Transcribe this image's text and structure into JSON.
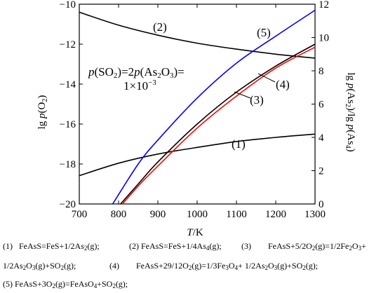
{
  "chart_data": {
    "type": "line",
    "xlabel": "T/K",
    "ylabel_left": "lg p(O2)",
    "ylabel_right": "lg p(As2)/lg p(As4)",
    "xlim": [
      700,
      1300
    ],
    "ylim_left": [
      -20,
      -10
    ],
    "ylim_right": [
      0,
      12
    ],
    "x_ticks": [
      "700",
      "800",
      "900",
      "1000",
      "1100",
      "1200",
      "1300"
    ],
    "y_ticks_left": [
      "-20",
      "-18",
      "-16",
      "-14",
      "-12",
      "-10"
    ],
    "y_ticks_right": [
      "0",
      "2",
      "4",
      "6",
      "8",
      "10",
      "12"
    ],
    "grid": false,
    "condition_text": [
      "p(SO2)=2p(As2O3)=",
      "1×10−3"
    ],
    "series": [
      {
        "name": "(1)",
        "axis": "right",
        "color": "#000000",
        "x": [
          700,
          800,
          900,
          1000,
          1100,
          1200,
          1300
        ],
        "y": [
          1.7,
          2.45,
          3.0,
          3.4,
          3.75,
          4.0,
          4.2
        ]
      },
      {
        "name": "(2)",
        "axis": "left",
        "color": "#000000",
        "x": [
          700,
          800,
          900,
          1000,
          1100,
          1200,
          1300
        ],
        "y": [
          -10.4,
          -11.05,
          -11.55,
          -11.95,
          -12.25,
          -12.5,
          -12.7
        ]
      },
      {
        "name": "(3)",
        "axis": "left",
        "color": "#000000",
        "x": [
          805,
          850,
          900,
          1000,
          1100,
          1200,
          1300
        ],
        "y": [
          -20.0,
          -19.0,
          -17.9,
          -16.0,
          -14.4,
          -13.1,
          -12.0
        ]
      },
      {
        "name": "(4)",
        "axis": "left",
        "color": "#ff0000",
        "x": [
          810,
          850,
          900,
          1000,
          1100,
          1200,
          1300
        ],
        "y": [
          -20.0,
          -19.1,
          -18.1,
          -16.2,
          -14.6,
          -13.2,
          -12.15
        ]
      },
      {
        "name": "(5)",
        "axis": "left",
        "color": "#0000ff",
        "x": [
          785,
          850,
          900,
          1000,
          1100,
          1200,
          1300
        ],
        "y": [
          -20.0,
          -18.0,
          -16.8,
          -14.7,
          -12.95,
          -11.6,
          -10.3
        ]
      }
    ]
  },
  "reactions": [
    "(1)   FeAsS=FeS+1/2As2(g);",
    "(2) FeAsS=FeS+1/4As4(g);",
    "(3)        FeAsS+5/2O2(g)=1/2Fe2O3+",
    "1/2As2O3(g)+SO2(g);",
    "(4)        FeAsS+29/12O2(g)=1/3Fe3O4+ 1/2As2O3(g)+SO2(g);",
    "(5) FeAsS+3O2(g)=FeAsO4+SO2(g);"
  ]
}
